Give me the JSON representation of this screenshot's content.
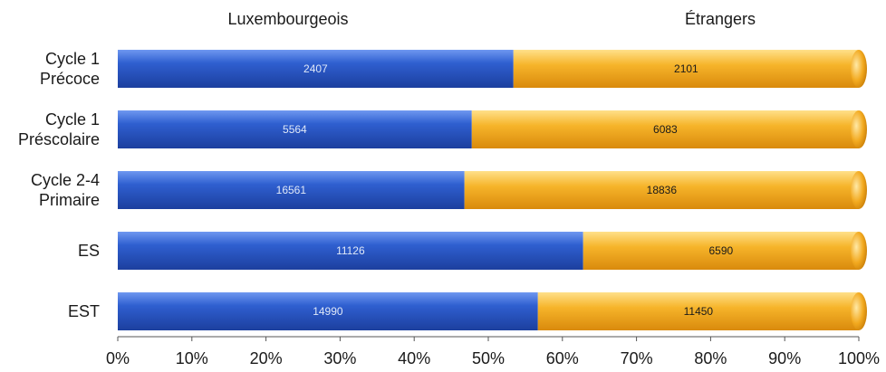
{
  "chart_data": {
    "type": "bar",
    "orientation": "horizontal",
    "stacked": "percent",
    "categories": [
      [
        "Cycle 1",
        "Précoce"
      ],
      [
        "Cycle 1",
        "Préscolaire"
      ],
      [
        "Cycle 2-4",
        "Primaire"
      ],
      [
        "ES"
      ],
      [
        "EST"
      ]
    ],
    "series": [
      {
        "name": "Luxembourgeois",
        "values": [
          2407,
          5564,
          16561,
          11126,
          14990
        ],
        "color": "#2f5fd0"
      },
      {
        "name": "Étrangers",
        "values": [
          2101,
          6083,
          18836,
          6590,
          11450
        ],
        "color": "#f2a91f"
      }
    ],
    "x_ticks": [
      "0%",
      "10%",
      "20%",
      "30%",
      "40%",
      "50%",
      "60%",
      "70%",
      "80%",
      "90%",
      "100%"
    ],
    "xlim": [
      0,
      100
    ],
    "legend_position": "top",
    "grid": false
  }
}
